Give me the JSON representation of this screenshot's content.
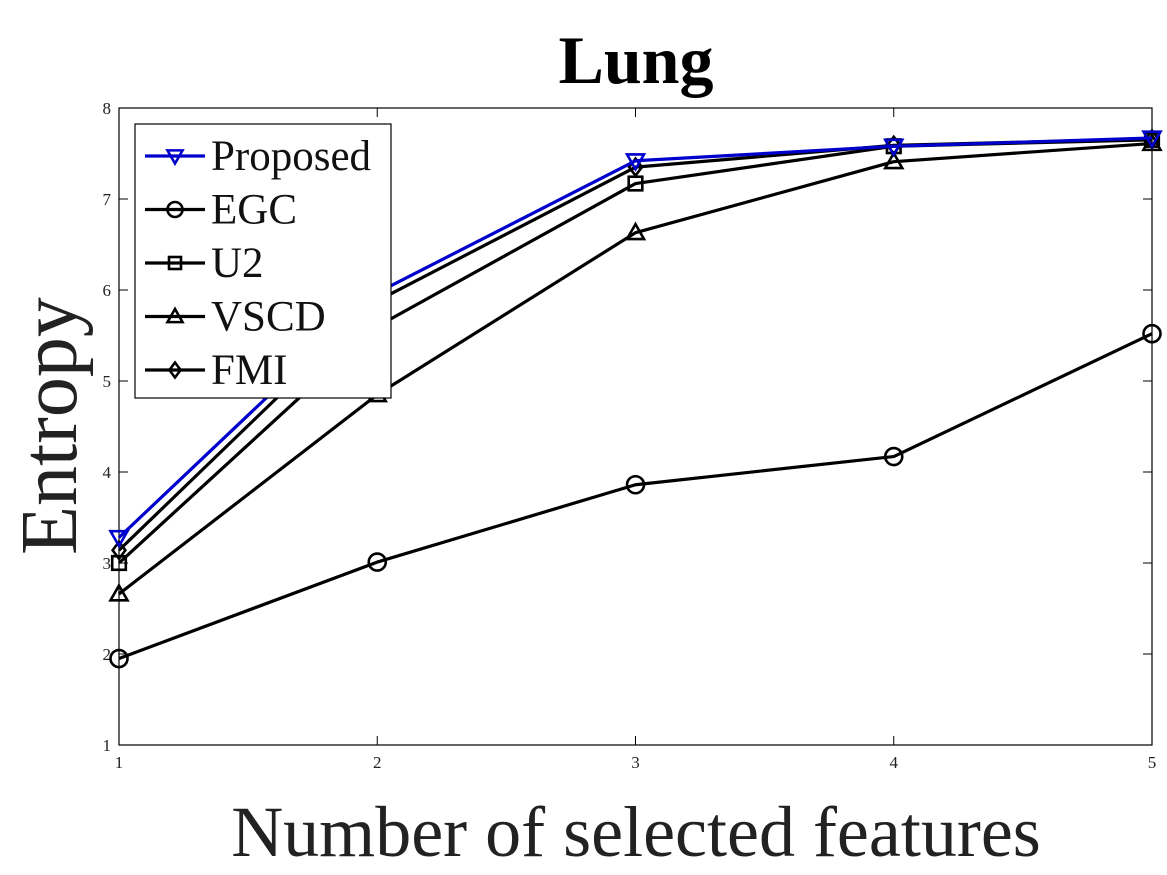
{
  "chart_data": {
    "type": "line",
    "title": "Lung",
    "xlabel": "Number of selected features",
    "ylabel": "Entropy",
    "x": [
      1,
      2,
      3,
      4,
      5
    ],
    "xlim": [
      1,
      5
    ],
    "ylim": [
      1,
      8
    ],
    "xticks": [
      "1",
      "2",
      "3",
      "4",
      "5"
    ],
    "yticks": [
      "1",
      "2",
      "3",
      "4",
      "5",
      "6",
      "7",
      "8"
    ],
    "grid": false,
    "legend_position": "top-left",
    "series": [
      {
        "name": "Proposed",
        "values": [
          3.28,
          5.97,
          7.42,
          7.58,
          7.67
        ],
        "color": "#0000cc",
        "marker": "triangle-down"
      },
      {
        "name": "EGC",
        "values": [
          1.95,
          3.01,
          3.86,
          4.17,
          5.52
        ],
        "color": "#000000",
        "marker": "circle"
      },
      {
        "name": "U2",
        "values": [
          3.0,
          5.6,
          7.17,
          7.58,
          7.65
        ],
        "color": "#000000",
        "marker": "square"
      },
      {
        "name": "VSCD",
        "values": [
          2.66,
          4.85,
          6.63,
          7.41,
          7.61
        ],
        "color": "#000000",
        "marker": "triangle-up"
      },
      {
        "name": "FMI",
        "values": [
          3.14,
          5.88,
          7.35,
          7.59,
          7.66
        ],
        "color": "#000000",
        "marker": "diamond"
      }
    ]
  }
}
